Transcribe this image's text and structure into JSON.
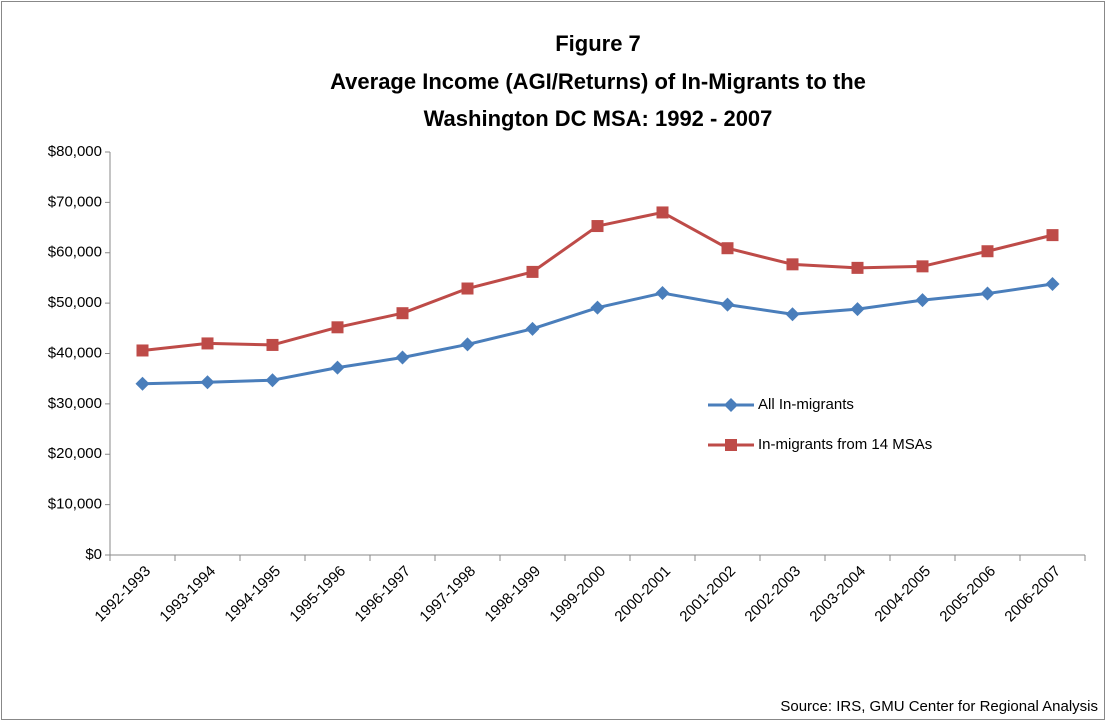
{
  "chart_data": {
    "type": "line",
    "title": [
      "Figure 7",
      "Average Income (AGI/Returns) of In-Migrants to the",
      "Washington DC MSA: 1992 - 2007"
    ],
    "categories": [
      "1992-1993",
      "1993-1994",
      "1994-1995",
      "1995-1996",
      "1996-1997",
      "1997-1998",
      "1998-1999",
      "1999-2000",
      "2000-2001",
      "2001-2002",
      "2002-2003",
      "2003-2004",
      "2004-2005",
      "2005-2006",
      "2006-2007"
    ],
    "series": [
      {
        "name": "All In-migrants",
        "color": "#4a7ebb",
        "marker": "diamond",
        "values": [
          34000,
          34300,
          34700,
          37200,
          39200,
          41800,
          44900,
          49100,
          52000,
          49700,
          47800,
          48800,
          50600,
          51900,
          53800
        ]
      },
      {
        "name": "In-migrants from 14 MSAs",
        "color": "#be4b48",
        "marker": "square",
        "values": [
          40600,
          42000,
          41700,
          45200,
          48000,
          52900,
          56200,
          65300,
          68000,
          60900,
          57700,
          57000,
          57300,
          60300,
          63500
        ]
      }
    ],
    "ylim": [
      0,
      80000
    ],
    "yticks": [
      {
        "value": 0,
        "label": "$0"
      },
      {
        "value": 10000,
        "label": "$10,000"
      },
      {
        "value": 20000,
        "label": "$20,000"
      },
      {
        "value": 30000,
        "label": "$30,000"
      },
      {
        "value": 40000,
        "label": "$40,000"
      },
      {
        "value": 50000,
        "label": "$50,000"
      },
      {
        "value": 60000,
        "label": "$60,000"
      },
      {
        "value": 70000,
        "label": "$70,000"
      },
      {
        "value": 80000,
        "label": "$80,000"
      }
    ],
    "grid": false,
    "legend": "right",
    "source": "Source: IRS, GMU Center for Regional Analysis"
  }
}
